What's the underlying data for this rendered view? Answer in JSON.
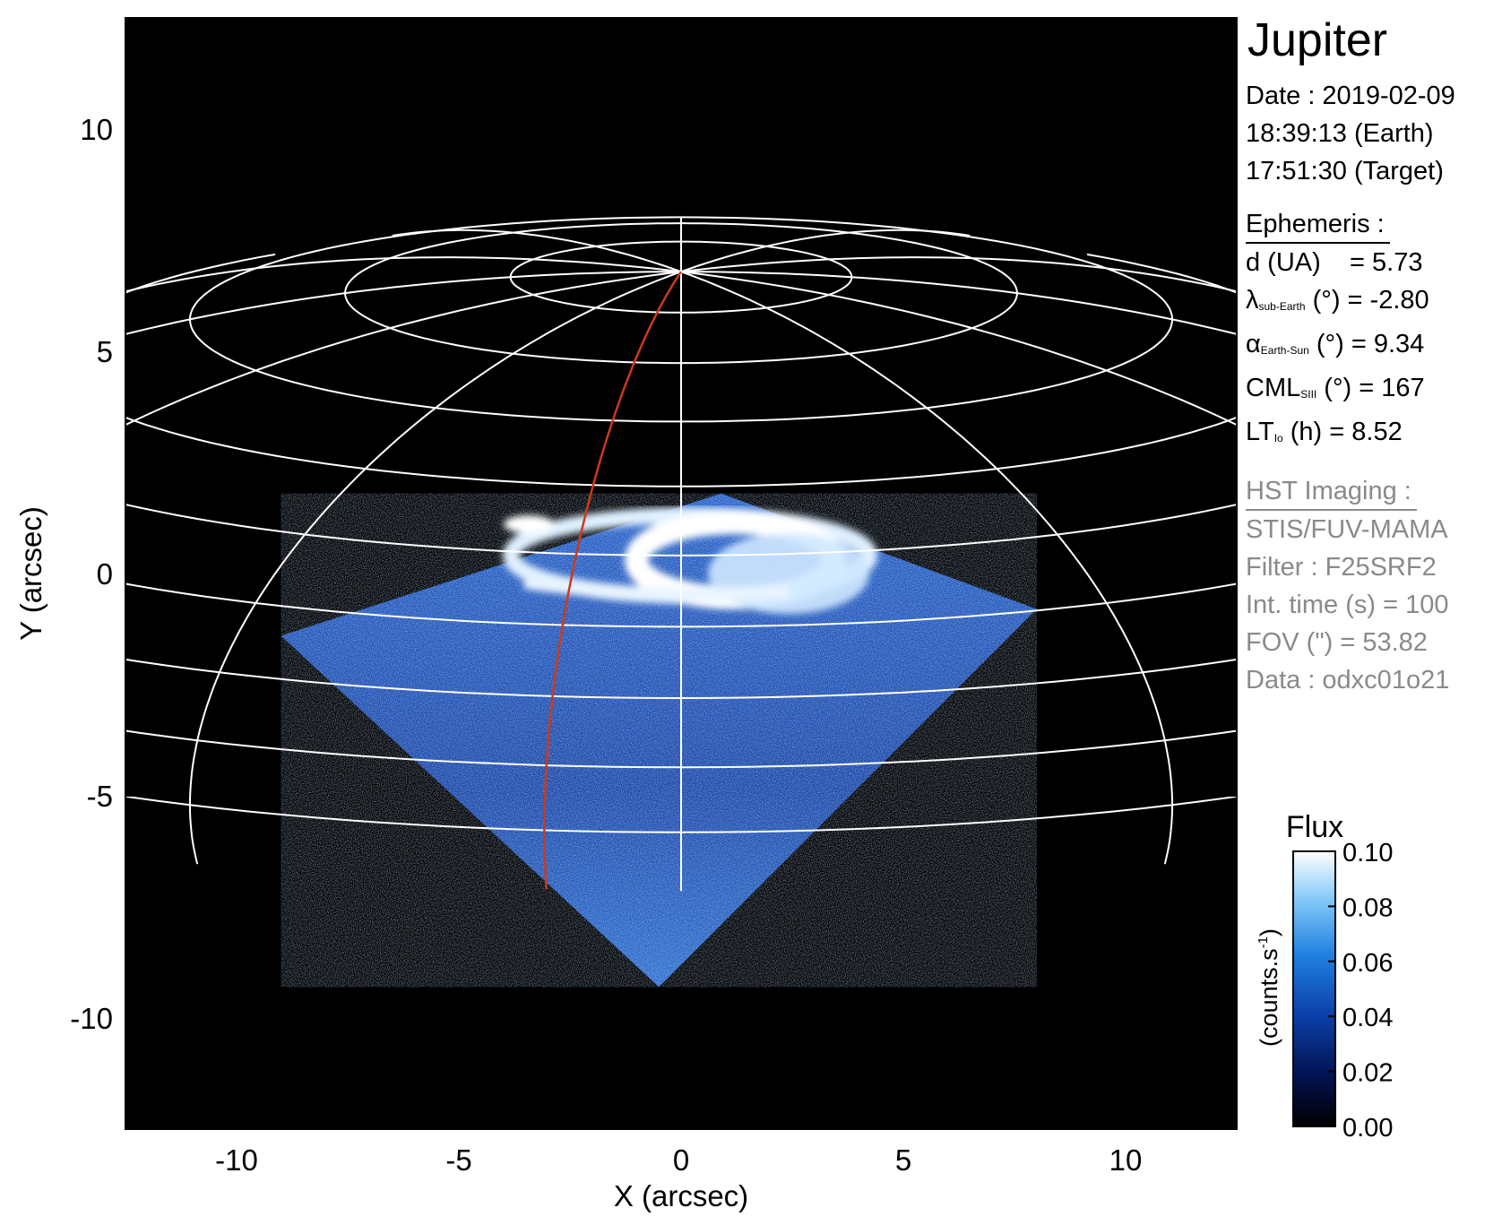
{
  "chart_data": {
    "type": "heatmap",
    "xlabel": "X (arcsec)",
    "ylabel": "Y (arcsec)",
    "xlim": [
      -12.5,
      12.5
    ],
    "ylim": [
      -12.5,
      12.5
    ],
    "xticks": [
      -10,
      -5,
      0,
      5,
      10
    ],
    "yticks": [
      10,
      5,
      0,
      -5,
      -10
    ],
    "xtick_labels": [
      "-10",
      "-5",
      "0",
      "5",
      "10"
    ],
    "ytick_labels": [
      "10",
      "5",
      "0",
      "-5",
      "-10"
    ],
    "background_color": "#000000",
    "grid_color": "#ffffff",
    "meridian_color": "#cc3a1a",
    "planet_limb": {
      "center": [
        0,
        -15
      ],
      "radius_x": 22.1,
      "radius_y": 16.8
    },
    "image_footprint": [
      [
        -9.0,
        -1.4
      ],
      [
        -0.5,
        -9.3
      ],
      [
        8.0,
        -0.8
      ],
      [
        0.9,
        1.8
      ]
    ],
    "colorbar": {
      "title": "Flux",
      "unit_label": "(counts.s",
      "unit_exponent": "-1",
      "unit_close": ")",
      "min": 0.0,
      "max": 0.1,
      "ticks": [
        "0.10",
        "0.08",
        "0.06",
        "0.04",
        "0.02",
        "0.00"
      ],
      "colors": [
        "#000000",
        "#02124e",
        "#0b3fa8",
        "#1f7fe0",
        "#80c8f8",
        "#ffffff"
      ]
    }
  },
  "panel": {
    "planet": "Jupiter",
    "date_line": "Date : 2019-02-09",
    "earth_time": "18:39:13 (Earth)",
    "target_time": "17:51:30 (Target)",
    "ephemeris_title": "Ephemeris :",
    "d_line": "d (UA)    = 5.73",
    "lambda_symbol": "λ",
    "lambda_sub": "sub-Earth",
    "lambda_rest": " (°) = -2.80",
    "alpha_symbol": "α",
    "alpha_sub": "Earth-Sun",
    "alpha_rest": " (°) = 9.34",
    "cml_symbol": "CML",
    "cml_sub": "SIII",
    "cml_rest": " (°) = 167",
    "lt_symbol": "LT",
    "lt_sub": "Io",
    "lt_rest": " (h) = 8.52",
    "hst_title": "HST Imaging :",
    "instrument": "STIS/FUV-MAMA",
    "filter": "Filter : F25SRF2",
    "int_time": "Int. time (s) = 100",
    "fov": "FOV (\") = 53.82",
    "data_id": "Data : odxc01o21"
  }
}
